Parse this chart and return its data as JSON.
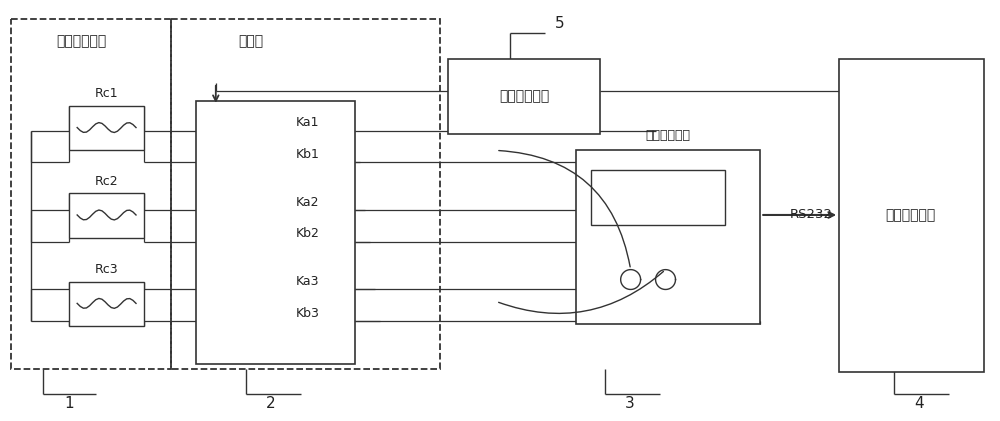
{
  "bg_color": "#ffffff",
  "lc": "#333333",
  "fig_width": 10.0,
  "fig_height": 4.21,
  "dpi": 100,
  "label_box1": "被测导电滑环",
  "label_box2": "继电器",
  "label_jdq": "继电器驱动器",
  "label_meter": "低电阻测试仪",
  "label_rs232": "RS232",
  "label_control": "自动控制设备",
  "label_rc1": "Rc1",
  "label_rc2": "Rc2",
  "label_rc3": "Rc3",
  "label_ka1": "Ka1",
  "label_kb1": "Kb1",
  "label_ka2": "Ka2",
  "label_kb2": "Kb2",
  "label_ka3": "Ka3",
  "label_kb3": "Kb3",
  "num1": "1",
  "num2": "2",
  "num3": "3",
  "num4": "4",
  "num5": "5"
}
